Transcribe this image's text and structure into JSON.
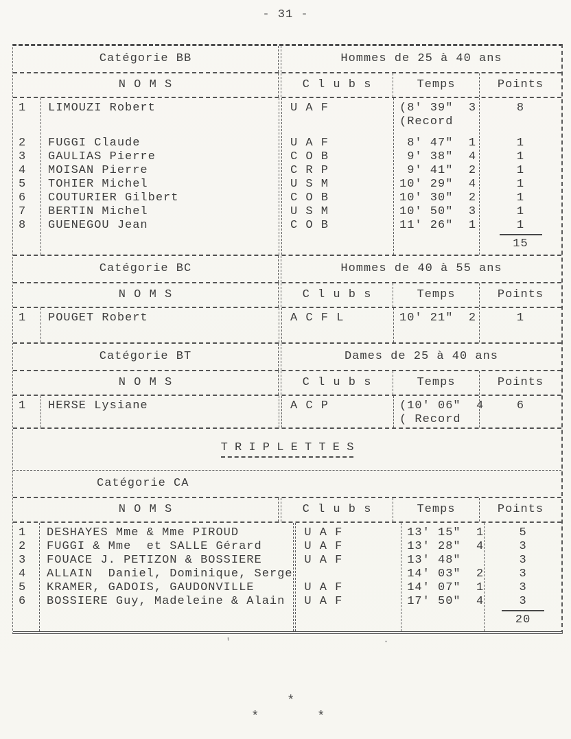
{
  "page_number": "- 31 -",
  "col_headers": {
    "noms": "N O M S",
    "clubs": "C l u b s",
    "temps": "Temps",
    "points": "Points"
  },
  "doublettes": {
    "sections": [
      {
        "id": "bb",
        "category": "Catégorie BB",
        "group": "Hommes de 25 à 40 ans",
        "rows": [
          {
            "rank": "1",
            "name": "LIMOUZI Robert",
            "club": "U A F",
            "temps_lines": [
              "(8' 39\"  3",
              "(Record"
            ],
            "points": "8",
            "gap_after": true
          },
          {
            "rank": "2",
            "name": "FUGGI Claude",
            "club": "U A F",
            "temps_lines": [
              " 8' 47\"  1"
            ],
            "points": "1"
          },
          {
            "rank": "3",
            "name": "GAULIAS Pierre",
            "club": "C O B",
            "temps_lines": [
              " 9' 38\"  4"
            ],
            "points": "1"
          },
          {
            "rank": "4",
            "name": "MOISAN Pierre",
            "club": "C R P",
            "temps_lines": [
              " 9' 41\"  2"
            ],
            "points": "1"
          },
          {
            "rank": "5",
            "name": "TOHIER Michel",
            "club": "U S M",
            "temps_lines": [
              "10' 29\"  4"
            ],
            "points": "1"
          },
          {
            "rank": "6",
            "name": "COUTURIER Gilbert",
            "club": "C O B",
            "temps_lines": [
              "10' 30\"  2"
            ],
            "points": "1"
          },
          {
            "rank": "7",
            "name": "BERTIN Michel",
            "club": "U S M",
            "temps_lines": [
              "10' 50\"  3"
            ],
            "points": "1"
          },
          {
            "rank": "8",
            "name": "GUENEGOU Jean",
            "club": "C O B",
            "temps_lines": [
              "11' 26\"  1"
            ],
            "points": "1"
          }
        ],
        "total": "15"
      },
      {
        "id": "bc",
        "category": "Catégorie BC",
        "group": "Hommes de 40 à 55 ans",
        "rows": [
          {
            "rank": "1",
            "name": "POUGET Robert",
            "club": "A C F L",
            "temps_lines": [
              "10' 21\"  2"
            ],
            "points": "1"
          }
        ],
        "total": null
      },
      {
        "id": "bt",
        "category": "Catégorie BT",
        "group": "Dames de 25 à 40 ans",
        "rows": [
          {
            "rank": "1",
            "name": "HERSE Lysiane",
            "club": "A C P",
            "temps_lines": [
              "(10' 06\"  4",
              "( Record"
            ],
            "points": "6"
          }
        ],
        "total": null
      }
    ]
  },
  "triplettes": {
    "title": "T R I P L E T T E S",
    "sections": [
      {
        "id": "ca",
        "category": "Catégorie CA",
        "group": null,
        "rows": [
          {
            "rank": "1",
            "name": "DESHAYES Mme & Mme PIROUD",
            "club": "U A F",
            "temps_lines": [
              "13' 15\"  1"
            ],
            "points": "5"
          },
          {
            "rank": "2",
            "name": "FUGGI & Mme  et SALLE Gérard",
            "club": "U A F",
            "temps_lines": [
              "13' 28\"  4"
            ],
            "points": "3"
          },
          {
            "rank": "3",
            "name": "FOUACE J. PETIZON & BOSSIERE",
            "club": "U A F",
            "temps_lines": [
              "13' 48\""
            ],
            "points": "3"
          },
          {
            "rank": "4",
            "name": "ALLAIN  Daniel, Dominique, Serge",
            "club": "",
            "temps_lines": [
              "14' 03\"  2"
            ],
            "points": "3"
          },
          {
            "rank": "5",
            "name": "KRAMER, GADOIS, GAUDONVILLE",
            "club": "U A F",
            "temps_lines": [
              "14' 07\"  1"
            ],
            "points": "3"
          },
          {
            "rank": "6",
            "name": "BOSSIERE Guy, Madeleine & Alain",
            "club": "U A F",
            "temps_lines": [
              "17' 50\"  4"
            ],
            "points": "3"
          }
        ],
        "total": "20"
      }
    ]
  },
  "footer": {
    "asterisks": [
      "*",
      "*",
      "*"
    ]
  },
  "stray_marks": {
    "left": "'",
    "right": "."
  }
}
